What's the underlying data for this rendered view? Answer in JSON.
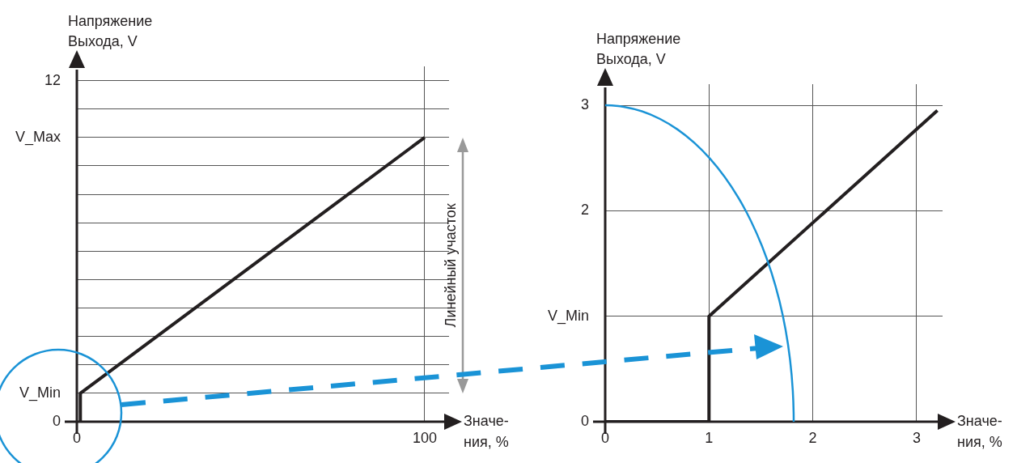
{
  "chart_data": [
    {
      "type": "line",
      "xlabel": "Значе-\nния, %",
      "ylabel": "Напряжение\nВыхода, V",
      "xlim": [
        0,
        107
      ],
      "ylim": [
        0,
        12.5
      ],
      "xticks": [
        0,
        100
      ],
      "yticks": [
        0,
        {
          "value": 1,
          "label": "V_Min"
        },
        {
          "value": 2,
          "label": null
        },
        {
          "value": 3,
          "label": null
        },
        {
          "value": 4,
          "label": null
        },
        {
          "value": 5,
          "label": null
        },
        {
          "value": 6,
          "label": null
        },
        {
          "value": 7,
          "label": null
        },
        {
          "value": 8,
          "label": null
        },
        {
          "value": 9,
          "label": null
        },
        {
          "value": 10,
          "label": "V_Max"
        },
        {
          "value": 11,
          "label": null
        },
        12
      ],
      "grid": true,
      "marker": "none",
      "series": [
        {
          "color": "#231f20",
          "x": [
            1,
            1,
            100
          ],
          "values": [
            0,
            1,
            10
          ]
        }
      ],
      "annotations": [
        "Линейный участок"
      ]
    },
    {
      "type": "line",
      "xlabel": "Значе-\nния, %",
      "ylabel": "Напряжение\nВыхода, V",
      "xlim": [
        0,
        3.25
      ],
      "ylim": [
        0,
        3.2
      ],
      "xticks": [
        0,
        1,
        2,
        3
      ],
      "yticks": [
        0,
        {
          "value": 1,
          "label": "V_Min"
        },
        2,
        3
      ],
      "grid": true,
      "marker": "none",
      "series": [
        {
          "color": "#231f20",
          "x": [
            0,
            1,
            1,
            3.2
          ],
          "values": [
            0,
            0,
            1,
            2.95
          ]
        }
      ]
    }
  ]
}
